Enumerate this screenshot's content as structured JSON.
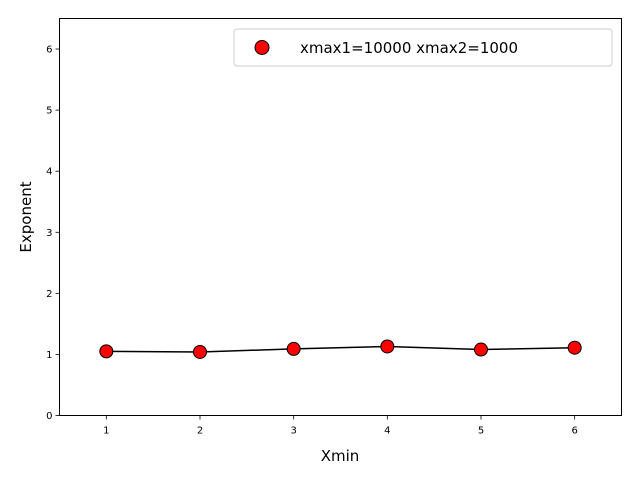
{
  "chart_data": {
    "type": "scatter",
    "xlabel": "Xmin",
    "ylabel": "Exponent",
    "xlim": [
      0.5,
      6.5
    ],
    "ylim": [
      0,
      6.5
    ],
    "xticks": [
      1,
      2,
      3,
      4,
      5,
      6
    ],
    "yticks": [
      0,
      1,
      2,
      3,
      4,
      5,
      6
    ],
    "grid": false,
    "legend_position": "top-right",
    "series": [
      {
        "name": "xmax1=10000 xmax2=1000",
        "x": [
          1,
          2,
          3,
          4,
          5,
          6
        ],
        "y": [
          1.05,
          1.04,
          1.09,
          1.13,
          1.08,
          1.11
        ],
        "yerr": [
          0.02,
          0.02,
          0.03,
          0.03,
          0.03,
          0.05
        ],
        "marker_color": "#ff0000",
        "line_color": "#000000"
      }
    ]
  }
}
